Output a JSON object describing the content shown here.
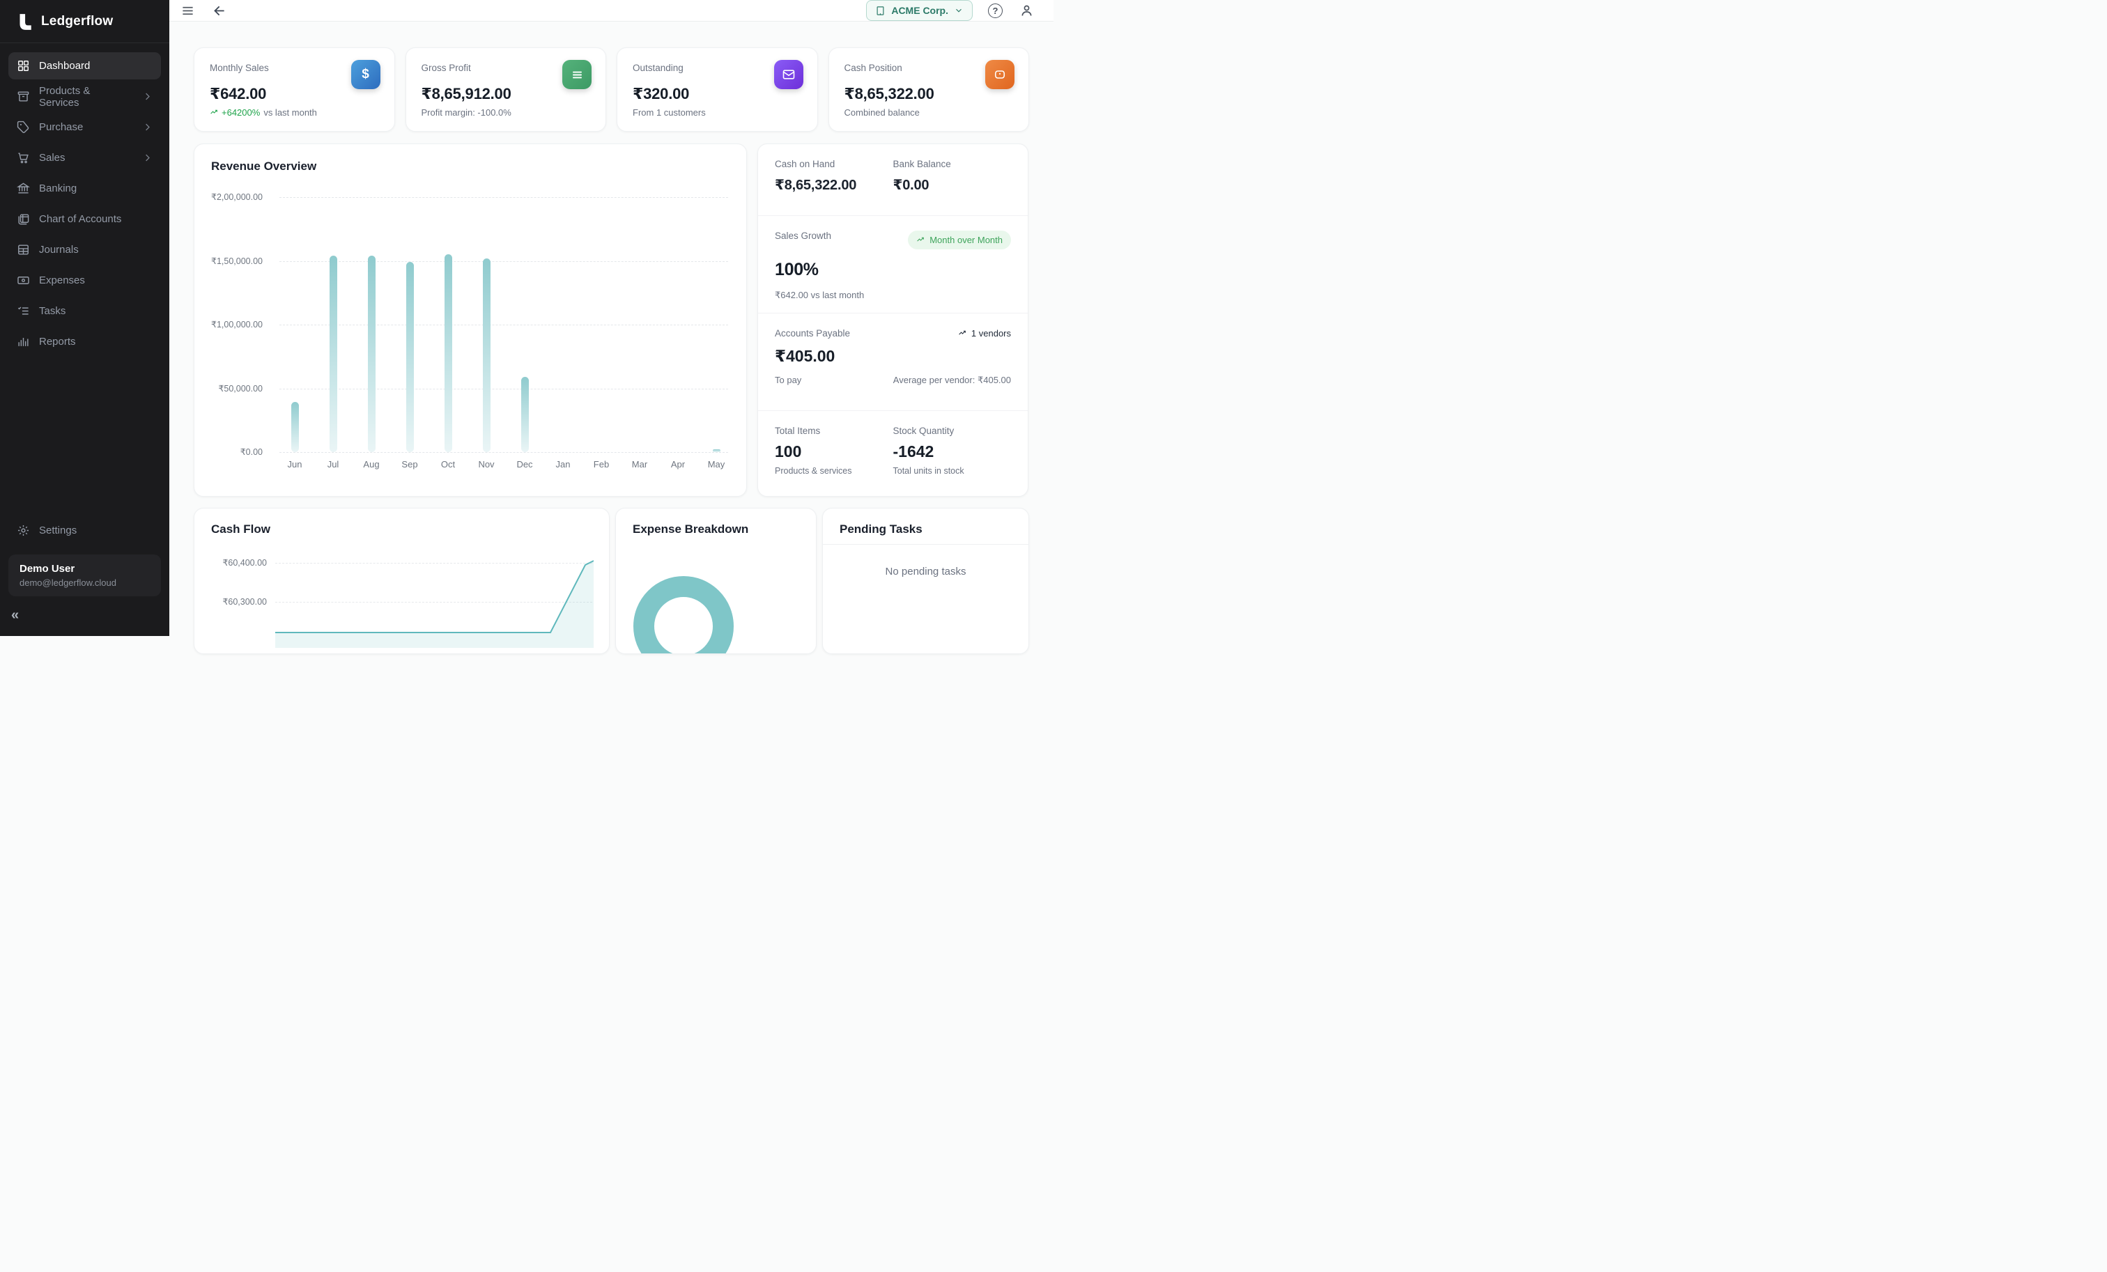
{
  "app": {
    "name": "Ledgerflow"
  },
  "sidebar": {
    "items": [
      {
        "label": "Dashboard",
        "active": true
      },
      {
        "label": "Products & Services",
        "expandable": true
      },
      {
        "label": "Purchase",
        "expandable": true
      },
      {
        "label": "Sales",
        "expandable": true
      },
      {
        "label": "Banking"
      },
      {
        "label": "Chart of Accounts"
      },
      {
        "label": "Journals"
      },
      {
        "label": "Expenses"
      },
      {
        "label": "Tasks"
      },
      {
        "label": "Reports"
      }
    ],
    "settings_label": "Settings",
    "user": {
      "name": "Demo User",
      "email": "demo@ledgerflow.cloud"
    },
    "collapse_glyph": "«"
  },
  "topbar": {
    "company": "ACME Corp."
  },
  "kpis": [
    {
      "label": "Monthly Sales",
      "value": "₹642.00",
      "delta": "+64200%",
      "sub": "vs last month",
      "icon": "dollar",
      "color": "#2d6cbe"
    },
    {
      "label": "Gross Profit",
      "value": "₹8,65,912.00",
      "sub": "Profit margin: -100.0%",
      "icon": "list",
      "color": "#3c9a64"
    },
    {
      "label": "Outstanding",
      "value": "₹320.00",
      "sub": "From 1 customers",
      "icon": "mail",
      "color": "#6d2fd9"
    },
    {
      "label": "Cash Position",
      "value": "₹8,65,322.00",
      "sub": "Combined balance",
      "icon": "wallet",
      "color": "#e0661f"
    }
  ],
  "revenue": {
    "title": "Revenue Overview",
    "y_ticks": [
      "₹2,00,000.00",
      "₹1,50,000.00",
      "₹1,00,000.00",
      "₹50,000.00",
      "₹0.00"
    ],
    "months": [
      "Jun",
      "Jul",
      "Aug",
      "Sep",
      "Oct",
      "Nov",
      "Dec",
      "Jan",
      "Feb",
      "Mar",
      "Apr",
      "May"
    ],
    "values": [
      39500,
      154000,
      154000,
      149000,
      155000,
      152000,
      59000,
      0,
      0,
      0,
      0,
      642
    ],
    "ymax": 200000,
    "bar_color": "#8fcbce"
  },
  "right_panel": {
    "cash_on_hand": {
      "label": "Cash on Hand",
      "value": "₹8,65,322.00"
    },
    "bank_balance": {
      "label": "Bank Balance",
      "value": "₹0.00"
    },
    "sales_growth": {
      "label": "Sales Growth",
      "badge": "Month over Month",
      "value": "100%",
      "sub": "₹642.00 vs last month"
    },
    "accounts_payable": {
      "label": "Accounts Payable",
      "vendors": "1 vendors",
      "value": "₹405.00",
      "sub_left": "To pay",
      "sub_right": "Average per vendor: ₹405.00"
    },
    "inventory": {
      "items_label": "Total Items",
      "items_value": "100",
      "items_sub": "Products & services",
      "stock_label": "Stock Quantity",
      "stock_value": "-1642",
      "stock_sub": "Total units in stock"
    }
  },
  "cash_flow": {
    "title": "Cash Flow",
    "y_ticks": [
      "₹60,400.00",
      "₹60,300.00"
    ],
    "line_color": "#5fb8bc"
  },
  "expense": {
    "title": "Expense Breakdown",
    "donut_color": "#7fc6c8"
  },
  "tasks": {
    "title": "Pending Tasks",
    "empty": "No pending tasks"
  },
  "chart_data": [
    {
      "type": "bar",
      "title": "Revenue Overview",
      "categories": [
        "Jun",
        "Jul",
        "Aug",
        "Sep",
        "Oct",
        "Nov",
        "Dec",
        "Jan",
        "Feb",
        "Mar",
        "Apr",
        "May"
      ],
      "values": [
        39500,
        154000,
        154000,
        149000,
        155000,
        152000,
        59000,
        0,
        0,
        0,
        0,
        642
      ],
      "ylabel": "₹",
      "ylim": [
        0,
        200000
      ],
      "y_tick_labels": [
        "₹0.00",
        "₹50,000.00",
        "₹1,00,000.00",
        "₹1,50,000.00",
        "₹2,00,000.00"
      ],
      "grid": "dashed horizontal",
      "legend": "none"
    },
    {
      "type": "line",
      "title": "Cash Flow",
      "y_tick_labels": [
        "₹60,300.00",
        "₹60,400.00"
      ],
      "note": "only partially visible; line spikes steeply upward at right edge to ~₹60,350",
      "visible_points": [
        {
          "x": "end",
          "y": 60350
        }
      ],
      "grid": "dashed horizontal"
    },
    {
      "type": "pie",
      "title": "Expense Breakdown",
      "note": "donut chart partially visible; single teal segment arc",
      "values": [
        100
      ],
      "colors": [
        "#7fc6c8"
      ]
    }
  ]
}
